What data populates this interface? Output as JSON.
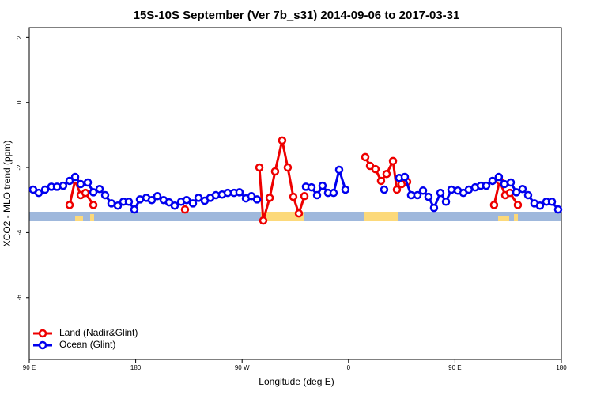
{
  "chart_data": {
    "type": "line",
    "title": "15S-10S September (Ver 7b_s31)   2014-09-06 to 2017-03-31",
    "x_label": "Longitude (deg E)",
    "y_label": "XCO2 - MLO trend (ppm)",
    "xlim": [
      90,
      540
    ],
    "ylim": [
      -7.9,
      2.3
    ],
    "xticks": [
      {
        "value": 90,
        "label": "90 E"
      },
      180,
      {
        "value": 270,
        "label": "90 W"
      },
      {
        "value": 360,
        "label": "0"
      },
      {
        "value": 450,
        "label": "90 E"
      },
      {
        "value": 540,
        "label": "180"
      }
    ],
    "yticks": [
      -6,
      -4,
      -2,
      0,
      2
    ],
    "legend": "bottom-left",
    "series": [
      {
        "name": "Land (Nadir&Glint)",
        "color": "#ee0000",
        "x": [
          124.1,
          128.8,
          133.5,
          137.5,
          144.2,
          180,
          221.7,
          250,
          284.6,
          287.9,
          293.3,
          297.9,
          303.9,
          308.6,
          313.3,
          318.0,
          322.7,
          350,
          374.2,
          378.2,
          382.8,
          387.5,
          392.2,
          397.6,
          400.9,
          404.9,
          409.6,
          450,
          483.1,
          487.8,
          492.5,
          496.5,
          503.2
        ],
        "values": [
          -3.15,
          -2.39,
          -2.85,
          -2.78,
          -3.15,
          null,
          -3.29,
          null,
          -2.0,
          -3.63,
          -2.93,
          -2.12,
          -1.17,
          -2.0,
          -2.9,
          -3.41,
          -2.88,
          null,
          -1.68,
          -1.95,
          -2.05,
          -2.41,
          -2.2,
          -1.8,
          -2.68,
          -2.51,
          -2.44,
          null,
          -3.15,
          -2.41,
          -2.85,
          -2.78,
          -3.15
        ]
      },
      {
        "name": "Ocean (Glint)",
        "color": "#0000ee",
        "x": [
          93.3,
          98.0,
          103.4,
          108.7,
          113.4,
          118.7,
          124.1,
          128.8,
          133.5,
          139.5,
          144.2,
          149.5,
          154.2,
          159.5,
          164.9,
          169.6,
          174.2,
          178.9,
          183.6,
          189.0,
          193.6,
          198.3,
          203.7,
          208.3,
          213.0,
          218.4,
          223.1,
          228.4,
          233.1,
          238.4,
          243.1,
          247.8,
          253.1,
          257.8,
          263.2,
          267.8,
          273.2,
          277.9,
          282.6,
          300,
          324.0,
          328.7,
          333.4,
          338.0,
          342.7,
          347.4,
          352.1,
          357.4,
          375,
          390.2,
          396,
          402.9,
          407.6,
          412.9,
          418.3,
          423.0,
          427.6,
          432.3,
          437.7,
          442.4,
          447.0,
          452.4,
          457.1,
          461.7,
          467.1,
          471.8,
          476.5,
          481.8,
          487.1,
          491.8,
          497.2,
          501.9,
          507.2,
          511.9,
          517.2,
          521.9,
          527.3,
          532.0,
          537.3
        ],
        "values": [
          -2.68,
          -2.78,
          -2.68,
          -2.59,
          -2.59,
          -2.56,
          -2.41,
          -2.29,
          -2.51,
          -2.46,
          -2.76,
          -2.66,
          -2.85,
          -3.1,
          -3.17,
          -3.05,
          -3.05,
          -3.29,
          -2.98,
          -2.93,
          -3.0,
          -2.88,
          -3.0,
          -3.07,
          -3.17,
          -3.05,
          -3.0,
          -3.1,
          -2.93,
          -3.02,
          -2.93,
          -2.85,
          -2.83,
          -2.78,
          -2.78,
          -2.76,
          -2.95,
          -2.88,
          -2.98,
          null,
          -2.59,
          -2.61,
          -2.85,
          -2.56,
          -2.78,
          -2.78,
          -2.07,
          -2.68,
          null,
          -2.68,
          null,
          -2.32,
          -2.29,
          -2.85,
          -2.85,
          -2.71,
          -2.9,
          -3.24,
          -2.78,
          -3.05,
          -2.68,
          -2.71,
          -2.78,
          -2.68,
          -2.61,
          -2.56,
          -2.56,
          -2.41,
          -2.29,
          -2.51,
          -2.46,
          -2.76,
          -2.66,
          -2.85,
          -3.1,
          -3.17,
          -3.05,
          -3.05,
          -3.29
        ]
      }
    ]
  }
}
